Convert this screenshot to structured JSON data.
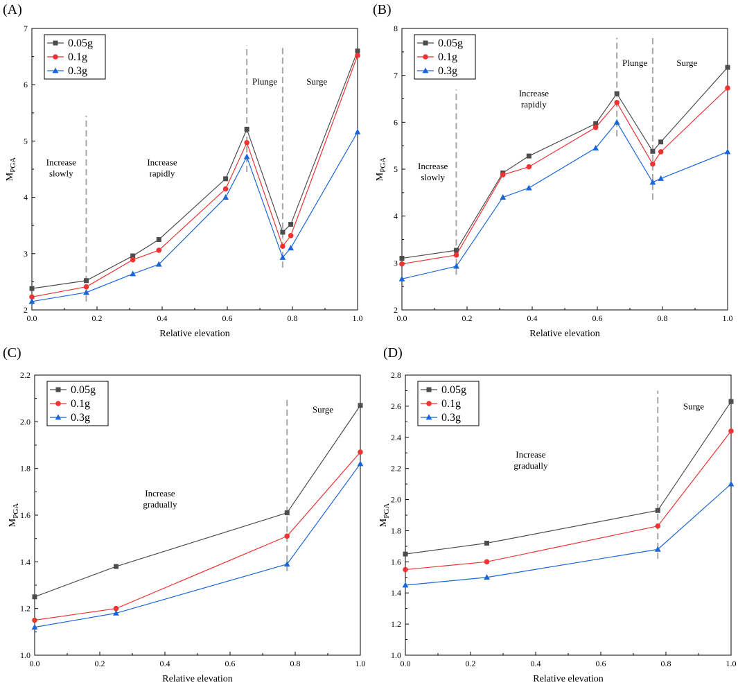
{
  "figure": {
    "colors": {
      "s005": "#4d4d4d",
      "s01": "#ee3333",
      "s03": "#1a66d9",
      "divider": "#a6a6a6",
      "axis": "#000000"
    }
  },
  "chart_data": [
    {
      "id": "A",
      "panel_label": "(A)",
      "type": "line",
      "xlabel": "Relative elevation",
      "ylabel_main": "M",
      "ylabel_sub": "PGA",
      "xlim": [
        0,
        1
      ],
      "ylim": [
        2,
        7
      ],
      "xticks": [
        0,
        0.2,
        0.4,
        0.6,
        0.8,
        1.0
      ],
      "xtick_labels": [
        "0.0",
        "0.2",
        "0.4",
        "0.6",
        "0.8",
        "1.0"
      ],
      "yticks": [
        2,
        3,
        4,
        5,
        6,
        7
      ],
      "ytick_labels": [
        "2",
        "3",
        "4",
        "5",
        "6",
        "7"
      ],
      "x": [
        0,
        0.167,
        0.31,
        0.39,
        0.595,
        0.66,
        0.77,
        0.795,
        1.0
      ],
      "series": [
        {
          "name": "0.05g",
          "marker": "square",
          "color": "#4d4d4d",
          "values": [
            2.38,
            2.52,
            2.96,
            3.25,
            4.33,
            5.21,
            3.38,
            3.52,
            6.6
          ]
        },
        {
          "name": "0.1g",
          "marker": "circle",
          "color": "#ee3333",
          "values": [
            2.23,
            2.41,
            2.89,
            3.06,
            4.15,
            4.97,
            3.13,
            3.32,
            6.52
          ]
        },
        {
          "name": "0.3g",
          "marker": "triangle",
          "color": "#1a66d9",
          "values": [
            2.15,
            2.31,
            2.64,
            2.81,
            4.0,
            4.72,
            2.93,
            3.1,
            5.16
          ]
        }
      ],
      "dividers": [
        {
          "x": 0.167,
          "y0": 2.15,
          "y1": 5.45
        },
        {
          "x": 0.66,
          "y0": 4.45,
          "y1": 6.7
        },
        {
          "x": 0.77,
          "y0": 2.75,
          "y1": 6.7
        }
      ],
      "annotations": [
        {
          "lines": [
            "Increase",
            "slowly"
          ],
          "x": 0.09,
          "y": 4.57
        },
        {
          "lines": [
            "Increase",
            "rapidly"
          ],
          "x": 0.4,
          "y": 4.57
        },
        {
          "lines": [
            "Plunge"
          ],
          "x": 0.715,
          "y": 6.0
        },
        {
          "lines": [
            "Surge"
          ],
          "x": 0.875,
          "y": 6.0
        }
      ],
      "legend_position": "top-left"
    },
    {
      "id": "B",
      "panel_label": "(B)",
      "type": "line",
      "xlabel": "Relative elevation",
      "ylabel_main": "M",
      "ylabel_sub": "PGA",
      "xlim": [
        0,
        1
      ],
      "ylim": [
        2,
        8
      ],
      "xticks": [
        0,
        0.2,
        0.4,
        0.6,
        0.8,
        1.0
      ],
      "xtick_labels": [
        "0.0",
        "0.2",
        "0.4",
        "0.6",
        "0.8",
        "1.0"
      ],
      "yticks": [
        2,
        3,
        4,
        5,
        6,
        7,
        8
      ],
      "ytick_labels": [
        "2",
        "3",
        "4",
        "5",
        "6",
        "7",
        "8"
      ],
      "x": [
        0,
        0.167,
        0.31,
        0.39,
        0.595,
        0.66,
        0.77,
        0.795,
        1.0
      ],
      "series": [
        {
          "name": "0.05g",
          "marker": "square",
          "color": "#4d4d4d",
          "values": [
            3.1,
            3.27,
            4.92,
            5.28,
            5.97,
            6.61,
            5.38,
            5.58,
            7.17
          ]
        },
        {
          "name": "0.1g",
          "marker": "circle",
          "color": "#ee3333",
          "values": [
            2.98,
            3.17,
            4.88,
            5.05,
            5.89,
            6.42,
            5.11,
            5.37,
            6.73
          ]
        },
        {
          "name": "0.3g",
          "marker": "triangle",
          "color": "#1a66d9",
          "values": [
            2.66,
            2.93,
            4.4,
            4.6,
            5.45,
            6.0,
            4.72,
            4.8,
            5.37
          ]
        }
      ],
      "dividers": [
        {
          "x": 0.167,
          "y0": 2.75,
          "y1": 6.7
        },
        {
          "x": 0.66,
          "y0": 5.7,
          "y1": 7.8
        },
        {
          "x": 0.77,
          "y0": 4.35,
          "y1": 7.8
        }
      ],
      "annotations": [
        {
          "lines": [
            "Increase",
            "slowly"
          ],
          "x": 0.095,
          "y": 5.0
        },
        {
          "lines": [
            "Increase",
            "rapidly"
          ],
          "x": 0.405,
          "y": 6.55
        },
        {
          "lines": [
            "Plunge"
          ],
          "x": 0.715,
          "y": 7.2
        },
        {
          "lines": [
            "Surge"
          ],
          "x": 0.875,
          "y": 7.2
        }
      ],
      "legend_position": "top-left"
    },
    {
      "id": "C",
      "panel_label": "(C)",
      "type": "line",
      "xlabel": "Relative elevation",
      "ylabel_main": "M",
      "ylabel_sub": "PGA",
      "xlim": [
        0,
        1
      ],
      "ylim": [
        1.0,
        2.2
      ],
      "xticks": [
        0,
        0.2,
        0.4,
        0.6,
        0.8,
        1.0
      ],
      "xtick_labels": [
        "0.0",
        "0.2",
        "0.4",
        "0.6",
        "0.8",
        "1.0"
      ],
      "yticks": [
        1.0,
        1.2,
        1.4,
        1.6,
        1.8,
        2.0,
        2.2
      ],
      "ytick_labels": [
        "1.0",
        "1.2",
        "1.4",
        "1.6",
        "1.8",
        "2.0",
        "2.2"
      ],
      "x": [
        0,
        0.25,
        0.775,
        1.0
      ],
      "series": [
        {
          "name": "0.05g",
          "marker": "square",
          "color": "#4d4d4d",
          "values": [
            1.25,
            1.38,
            1.61,
            2.07
          ]
        },
        {
          "name": "0.1g",
          "marker": "circle",
          "color": "#ee3333",
          "values": [
            1.15,
            1.2,
            1.51,
            1.87
          ]
        },
        {
          "name": "0.3g",
          "marker": "triangle",
          "color": "#1a66d9",
          "values": [
            1.12,
            1.18,
            1.39,
            1.82
          ]
        }
      ],
      "dividers": [
        {
          "x": 0.775,
          "y0": 1.36,
          "y1": 2.1
        }
      ],
      "annotations": [
        {
          "lines": [
            "Increase",
            "gradually"
          ],
          "x": 0.385,
          "y": 1.68
        },
        {
          "lines": [
            "Surge"
          ],
          "x": 0.885,
          "y": 2.04
        }
      ],
      "legend_position": "top-left"
    },
    {
      "id": "D",
      "panel_label": "(D)",
      "type": "line",
      "xlabel": "Relative elevation",
      "ylabel_main": "M",
      "ylabel_sub": "PGA",
      "xlim": [
        0,
        1
      ],
      "ylim": [
        1.0,
        2.8
      ],
      "xticks": [
        0,
        0.2,
        0.4,
        0.6,
        0.8,
        1.0
      ],
      "xtick_labels": [
        "0.0",
        "0.2",
        "0.4",
        "0.6",
        "0.8",
        "1.0"
      ],
      "yticks": [
        1.0,
        1.2,
        1.4,
        1.6,
        1.8,
        2.0,
        2.2,
        2.4,
        2.6,
        2.8
      ],
      "ytick_labels": [
        "1.0",
        "1.2",
        "1.4",
        "1.6",
        "1.8",
        "2.0",
        "2.2",
        "2.4",
        "2.6",
        "2.8"
      ],
      "x": [
        0,
        0.25,
        0.775,
        1.0
      ],
      "series": [
        {
          "name": "0.05g",
          "marker": "square",
          "color": "#4d4d4d",
          "values": [
            1.65,
            1.72,
            1.93,
            2.63
          ]
        },
        {
          "name": "0.1g",
          "marker": "circle",
          "color": "#ee3333",
          "values": [
            1.55,
            1.6,
            1.83,
            2.44
          ]
        },
        {
          "name": "0.3g",
          "marker": "triangle",
          "color": "#1a66d9",
          "values": [
            1.45,
            1.5,
            1.68,
            2.1
          ]
        }
      ],
      "dividers": [
        {
          "x": 0.775,
          "y0": 1.62,
          "y1": 2.7
        }
      ],
      "annotations": [
        {
          "lines": [
            "Increase",
            "gradually"
          ],
          "x": 0.385,
          "y": 2.27
        },
        {
          "lines": [
            "Surge"
          ],
          "x": 0.885,
          "y": 2.58
        }
      ],
      "legend_position": "top-left"
    }
  ]
}
